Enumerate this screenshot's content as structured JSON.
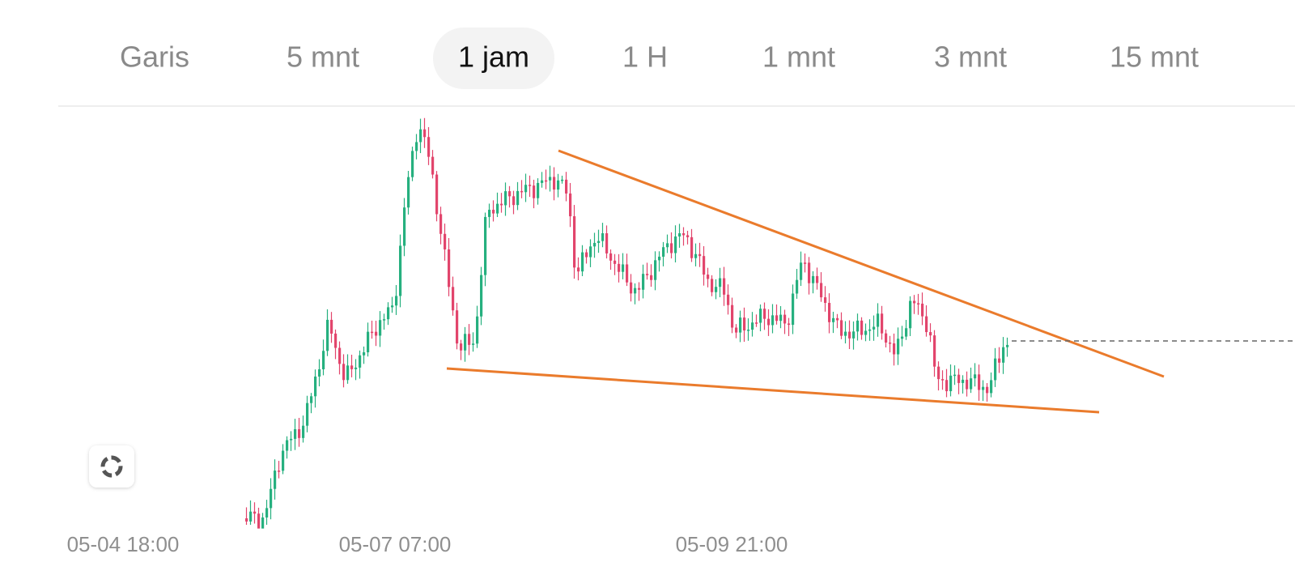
{
  "tabs": [
    "Garis",
    "5 mnt",
    "1 jam",
    "1 H",
    "1 mnt",
    "3 mnt",
    "15 mnt"
  ],
  "active_tab": "1 jam",
  "x_axis_labels": [
    "05-04 18:00",
    "05-07 07:00",
    "05-09 21:00"
  ]
}
